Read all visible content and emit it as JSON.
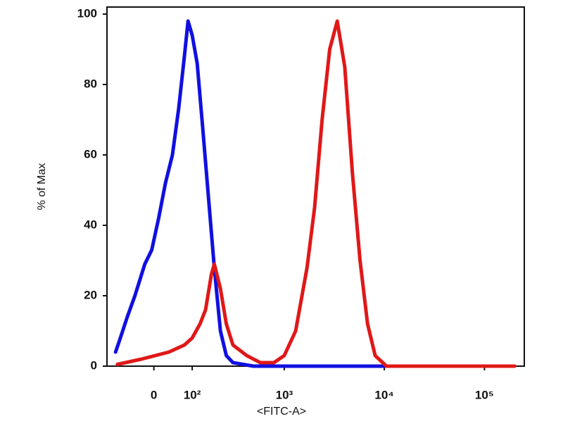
{
  "chart_data": {
    "type": "line",
    "xlabel": "<FITC-A>",
    "ylabel": "% of Max",
    "xscale": "biexponential",
    "xlim": [
      -130,
      250000
    ],
    "ylim": [
      0,
      102
    ],
    "xticks": [
      0,
      {
        "value": 100,
        "label": "10²"
      },
      {
        "value": 1000,
        "label": "10³"
      },
      {
        "value": 10000,
        "label": "10⁴"
      },
      {
        "value": 100000,
        "label": "10⁵"
      }
    ],
    "yticks": [
      0,
      20,
      40,
      60,
      80,
      100
    ],
    "series": [
      {
        "color": "#1010e0",
        "x": [
          -100,
          -85,
          -65,
          -45,
          -21,
          -5,
          11,
          27,
          44,
          60,
          76,
          87,
          100,
          117,
          137,
          161,
          188,
          220,
          255,
          300,
          489,
          3700,
          200000
        ],
        "values": [
          4,
          8,
          14,
          20,
          29,
          33,
          42,
          52,
          60,
          73,
          88,
          98,
          94,
          86,
          68,
          48,
          28,
          10,
          3,
          1,
          0,
          0,
          0
        ]
      },
      {
        "color": "#e01818",
        "x": [
          -94,
          -29,
          35,
          76,
          100,
          127,
          149,
          174,
          188,
          220,
          255,
          300,
          417,
          574,
          788,
          1000,
          1300,
          1690,
          2010,
          2390,
          2850,
          3390,
          4030,
          4800,
          5720,
          6810,
          8100,
          10500,
          200000
        ],
        "values": [
          0.5,
          2,
          4,
          6,
          8,
          12,
          16,
          26,
          29,
          22,
          12,
          6,
          3,
          1,
          1,
          3,
          10,
          28,
          45,
          70,
          90,
          98,
          85,
          55,
          30,
          12,
          3,
          0,
          0
        ]
      }
    ]
  }
}
